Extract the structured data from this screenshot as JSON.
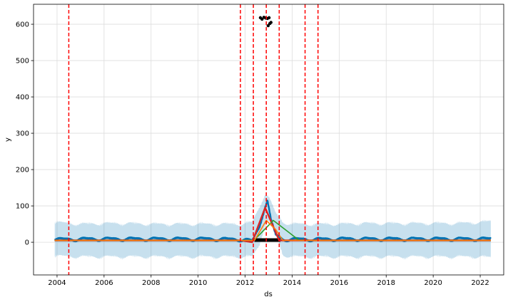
{
  "chart_data": {
    "type": "line",
    "title": "",
    "xlabel": "ds",
    "ylabel": "y",
    "xlim": [
      2003.0,
      2023.0
    ],
    "ylim": [
      -90,
      655
    ],
    "grid": true,
    "x_ticks": [
      "2004",
      "2006",
      "2008",
      "2010",
      "2012",
      "2014",
      "2016",
      "2018",
      "2020",
      "2022"
    ],
    "y_ticks": [
      "0",
      "100",
      "200",
      "300",
      "400",
      "500",
      "600"
    ],
    "colors": {
      "forecast": "#0072B2",
      "uncertainty": "#0072B2",
      "observed": "#000000",
      "changepoint": "#ff0000",
      "component_red": "#d62728",
      "component_green": "#2ca02c",
      "component_orange": "#ff7f0e",
      "grid": "#dddddd"
    },
    "changepoints": [
      2004.5,
      2011.8,
      2012.35,
      2012.9,
      2013.45,
      2014.55,
      2015.1
    ],
    "forecast": {
      "x": [
        2003.9,
        2004.5,
        2005.5,
        2006.5,
        2007.5,
        2008.5,
        2009.5,
        2010.5,
        2011.5,
        2012.0,
        2012.3,
        2012.6,
        2012.85,
        2012.95,
        2013.1,
        2013.3,
        2013.6,
        2014.0,
        2015.0,
        2016.0,
        2017.0,
        2018.0,
        2019.0,
        2020.0,
        2021.0,
        2022.0,
        2022.45
      ],
      "y": [
        8,
        8,
        9,
        9,
        9,
        9,
        9,
        9,
        8,
        7,
        3,
        40,
        100,
        115,
        60,
        20,
        8,
        8,
        8,
        9,
        9,
        9,
        9,
        9,
        9,
        9,
        9
      ]
    },
    "uncertainty_band": {
      "x": [
        2003.9,
        2005.0,
        2006.0,
        2007.0,
        2008.0,
        2009.0,
        2010.0,
        2011.0,
        2011.8,
        2012.3,
        2012.6,
        2012.85,
        2013.0,
        2013.3,
        2013.6,
        2014.0,
        2015.0,
        2016.0,
        2017.0,
        2018.0,
        2019.0,
        2020.0,
        2021.0,
        2022.0,
        2022.45
      ],
      "upper": [
        55,
        50,
        52,
        52,
        50,
        50,
        50,
        50,
        50,
        55,
        95,
        135,
        125,
        80,
        55,
        50,
        50,
        50,
        52,
        52,
        52,
        52,
        52,
        55,
        58
      ],
      "lower": [
        -38,
        -40,
        -40,
        -40,
        -40,
        -40,
        -40,
        -40,
        -40,
        -40,
        -10,
        50,
        60,
        25,
        -35,
        -40,
        -40,
        -40,
        -40,
        -40,
        -40,
        -40,
        -40,
        -40,
        -42
      ]
    },
    "series": [
      {
        "x": [
          2003.9,
          2011.8,
          2012.3,
          2012.85,
          2013.45,
          2014.0,
          2022.45
        ],
        "y": [
          5,
          5,
          0,
          95,
          5,
          5,
          5
        ]
      },
      {
        "x": [
          2003.9,
          2012.35,
          2012.6,
          2013.2,
          2013.8,
          2014.3,
          2022.45
        ],
        "y": [
          5,
          5,
          20,
          60,
          30,
          5,
          5
        ]
      },
      {
        "x": [
          2003.9,
          2012.4,
          2012.9,
          2013.3,
          2013.6,
          2022.45
        ],
        "y": [
          5,
          5,
          60,
          35,
          5,
          5
        ]
      }
    ],
    "observed_outliers": {
      "x": [
        2012.65,
        2012.72,
        2012.8,
        2012.88,
        2012.95,
        2013.02,
        2012.98,
        2013.05,
        2013.1
      ],
      "y": [
        618,
        614,
        619,
        617,
        616,
        618,
        596,
        602,
        605
      ]
    },
    "observed_baseline": {
      "x_start": 2003.9,
      "x_end": 2022.45,
      "y": 5
    },
    "observed_spike_bar": {
      "x_start": 2012.4,
      "x_end": 2013.5,
      "y": 5
    }
  }
}
